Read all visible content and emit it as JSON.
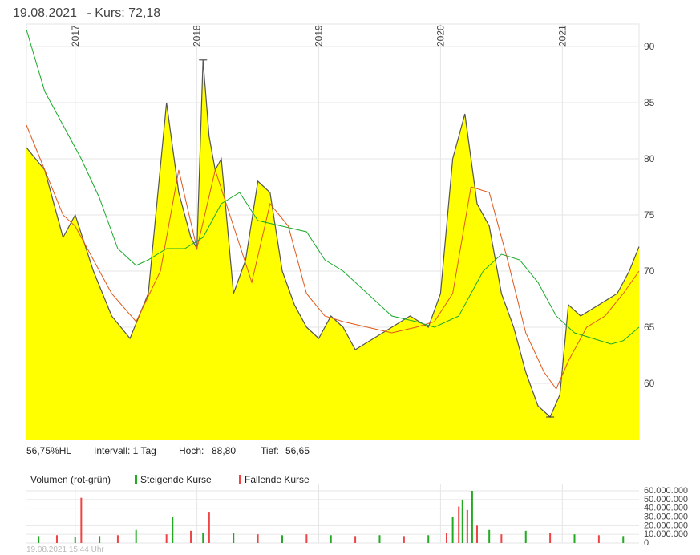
{
  "header": {
    "date": "19.08.2021",
    "price_text": "- Kurs: 72,18"
  },
  "info": {
    "range_pct": "56,75%HL",
    "interval": "Intervall: 1 Tag",
    "high_label": "Hoch:",
    "high_value": "88,80",
    "low_label": "Tief:",
    "low_value": "56,65"
  },
  "volume_legend": {
    "title": "Volumen (rot-grün)",
    "rising": "Steigende Kurse",
    "falling": "Fallende Kurse"
  },
  "footer_timestamp": "19.08.2021 15:44 Uhr",
  "colors": {
    "fill": "#ffff00",
    "price_line": "#555555",
    "ma_short": "#e0581b",
    "ma_long": "#1aaa2a",
    "rising": "#22aa22",
    "falling": "#ee4444",
    "grid": "#e6e6e6"
  },
  "chart_data": [
    {
      "type": "area",
      "title": "",
      "x_ticks": [
        "2017",
        "2018",
        "2019",
        "2020",
        "2021"
      ],
      "y_ticks": [
        "90",
        "85",
        "80",
        "75",
        "70",
        "65",
        "60"
      ],
      "ylim": [
        55,
        92
      ],
      "grid": true,
      "series": [
        {
          "name": "",
          "x": [
            2016.6,
            2016.75,
            2016.9,
            2017.0,
            2017.15,
            2017.3,
            2017.45,
            2017.6,
            2017.75,
            2017.85,
            2017.95,
            2018.0,
            2018.05,
            2018.1,
            2018.15,
            2018.2,
            2018.3,
            2018.4,
            2018.5,
            2018.6,
            2018.7,
            2018.8,
            2018.9,
            2019.0,
            2019.1,
            2019.2,
            2019.3,
            2019.45,
            2019.6,
            2019.75,
            2019.9,
            2020.0,
            2020.1,
            2020.2,
            2020.3,
            2020.4,
            2020.5,
            2020.6,
            2020.7,
            2020.8,
            2020.9,
            2020.98,
            2021.05,
            2021.15,
            2021.3,
            2021.45,
            2021.55,
            2021.63
          ],
          "y": [
            81,
            79,
            73,
            75,
            70,
            66,
            64,
            68,
            85,
            77,
            73,
            72,
            88.8,
            82,
            79,
            80,
            68,
            71,
            78,
            77,
            70,
            67,
            65,
            64,
            66,
            65,
            63,
            64,
            65,
            66,
            65,
            68,
            80,
            84,
            76,
            74,
            68,
            65,
            61,
            58,
            57,
            59,
            67,
            66,
            67,
            68,
            70,
            72.18
          ]
        },
        {
          "name": "",
          "x": [
            2016.6,
            2016.75,
            2016.9,
            2017.0,
            2017.15,
            2017.3,
            2017.5,
            2017.7,
            2017.85,
            2018.0,
            2018.15,
            2018.3,
            2018.45,
            2018.6,
            2018.75,
            2018.9,
            2019.05,
            2019.2,
            2019.4,
            2019.6,
            2019.8,
            2019.95,
            2020.1,
            2020.25,
            2020.4,
            2020.55,
            2020.7,
            2020.85,
            2020.95,
            2021.05,
            2021.2,
            2021.35,
            2021.5,
            2021.63
          ],
          "y": [
            83,
            79,
            75,
            74,
            71,
            68,
            65.5,
            70,
            79,
            72,
            79,
            74,
            69,
            76,
            74,
            68,
            66,
            65.5,
            65,
            64.5,
            65,
            65.5,
            68,
            77.5,
            77,
            71,
            64.5,
            61,
            59.5,
            62,
            65,
            66,
            68,
            70
          ]
        },
        {
          "name": "",
          "x": [
            2016.6,
            2016.75,
            2016.9,
            2017.05,
            2017.2,
            2017.35,
            2017.5,
            2017.6,
            2017.75,
            2017.9,
            2018.05,
            2018.2,
            2018.35,
            2018.5,
            2018.7,
            2018.9,
            2019.05,
            2019.2,
            2019.4,
            2019.6,
            2019.8,
            2019.95,
            2020.15,
            2020.35,
            2020.5,
            2020.65,
            2020.8,
            2020.95,
            2021.1,
            2021.25,
            2021.4,
            2021.5,
            2021.63
          ],
          "y": [
            91.5,
            86,
            83,
            80,
            76.5,
            72,
            70.5,
            71,
            72,
            72,
            73,
            76,
            77,
            74.5,
            74,
            73.5,
            71,
            70,
            68,
            66,
            65.5,
            65,
            66,
            70,
            71.5,
            71,
            69,
            66,
            64.5,
            64,
            63.5,
            63.8,
            65
          ]
        }
      ]
    },
    {
      "type": "bar",
      "title": "",
      "y_ticks": [
        "60.000.000",
        "50.000.000",
        "40.000.000",
        "30.000.000",
        "20.000.000",
        "10.000.000",
        "0"
      ],
      "ylim": [
        0,
        60000000
      ],
      "series": [
        {
          "name": "",
          "x": [
            2016.7,
            2016.85,
            2017.0,
            2017.05,
            2017.2,
            2017.35,
            2017.5,
            2017.75,
            2017.8,
            2017.95,
            2018.05,
            2018.1,
            2018.3,
            2018.5,
            2018.7,
            2018.9,
            2019.1,
            2019.3,
            2019.5,
            2019.7,
            2019.9,
            2020.05,
            2020.1,
            2020.15,
            2020.18,
            2020.22,
            2020.26,
            2020.3,
            2020.4,
            2020.5,
            2020.7,
            2020.9,
            2021.1,
            2021.3,
            2021.5
          ],
          "y": [
            8000000,
            9000000,
            7000000,
            52000000,
            8000000,
            9000000,
            15000000,
            10000000,
            30000000,
            14000000,
            12000000,
            35000000,
            12000000,
            10000000,
            9000000,
            10000000,
            9000000,
            8000000,
            9000000,
            8000000,
            9000000,
            12000000,
            30000000,
            42000000,
            50000000,
            38000000,
            60000000,
            20000000,
            15000000,
            10000000,
            14000000,
            12000000,
            10000000,
            9000000,
            8000000
          ]
        }
      ]
    }
  ]
}
